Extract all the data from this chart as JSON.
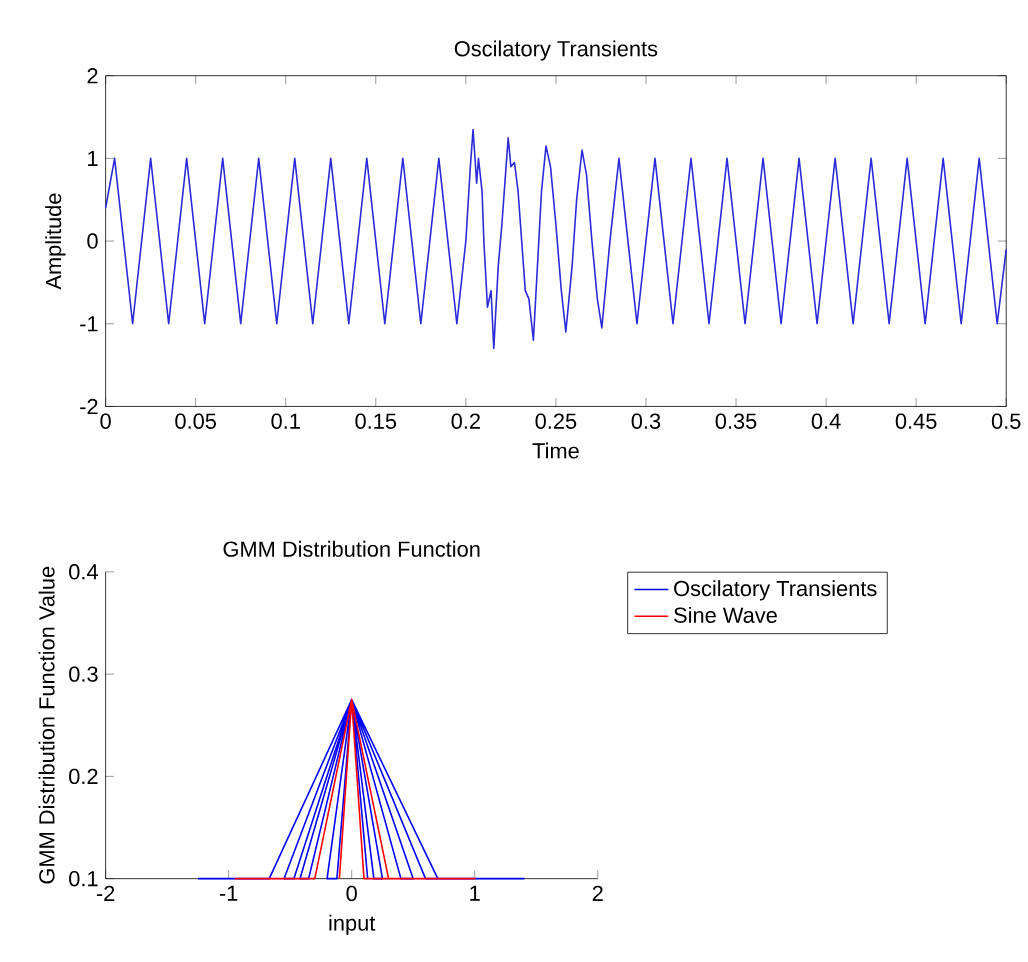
{
  "chart_data": [
    {
      "type": "line",
      "title": "Oscilatory Transients",
      "xlabel": "Time",
      "ylabel": "Amplitude",
      "xlim": [
        0,
        0.5
      ],
      "xticks": [
        0,
        0.05,
        0.1,
        0.15,
        0.2,
        0.25,
        0.3,
        0.35,
        0.4,
        0.45,
        0.5
      ],
      "ylim": [
        -2,
        2
      ],
      "yticks": [
        -2,
        -1,
        0,
        1,
        2
      ],
      "series": [
        {
          "color": "#2a2ad8",
          "x": [
            0,
            0.005,
            0.01,
            0.015,
            0.02,
            0.025,
            0.03,
            0.035,
            0.04,
            0.045,
            0.05,
            0.055,
            0.06,
            0.065,
            0.07,
            0.075,
            0.08,
            0.085,
            0.09,
            0.095,
            0.1,
            0.105,
            0.11,
            0.115,
            0.12,
            0.125,
            0.13,
            0.135,
            0.14,
            0.145,
            0.15,
            0.155,
            0.16,
            0.165,
            0.17,
            0.175,
            0.18,
            0.185,
            0.19,
            0.195,
            0.2,
            0.2025,
            0.204,
            0.206,
            0.207,
            0.209,
            0.21,
            0.212,
            0.214,
            0.2155,
            0.218,
            0.22,
            0.222,
            0.2235,
            0.225,
            0.227,
            0.229,
            0.231,
            0.233,
            0.235,
            0.2375,
            0.24,
            0.242,
            0.2445,
            0.247,
            0.25,
            0.253,
            0.2555,
            0.259,
            0.2615,
            0.2645,
            0.267,
            0.27,
            0.273,
            0.2755,
            0.28,
            0.285,
            0.29,
            0.295,
            0.3,
            0.305,
            0.31,
            0.315,
            0.32,
            0.325,
            0.33,
            0.335,
            0.34,
            0.345,
            0.35,
            0.355,
            0.36,
            0.365,
            0.37,
            0.375,
            0.38,
            0.385,
            0.39,
            0.395,
            0.4,
            0.405,
            0.41,
            0.415,
            0.42,
            0.425,
            0.43,
            0.435,
            0.44,
            0.445,
            0.45,
            0.455,
            0.46,
            0.465,
            0.47,
            0.475,
            0.48,
            0.485,
            0.49,
            0.495,
            0.5
          ],
          "values": [
            0.4,
            1,
            0,
            -1,
            0,
            1,
            0,
            -1,
            0,
            1,
            0,
            -1,
            0,
            1,
            0,
            -1,
            0,
            1,
            0,
            -1,
            0,
            1,
            0,
            -1,
            0,
            1,
            0,
            -1,
            0,
            1,
            0,
            -1,
            0,
            1,
            0,
            -1,
            0,
            1,
            0,
            -1,
            0,
            0.9,
            1.35,
            0.7,
            1.0,
            0.6,
            0,
            -0.8,
            -0.6,
            -1.3,
            -0.3,
            0.2,
            0.8,
            1.25,
            0.9,
            0.95,
            0.6,
            0,
            -0.6,
            -0.7,
            -1.2,
            -0.2,
            0.6,
            1.15,
            0.9,
            0.2,
            -0.6,
            -1.1,
            -0.3,
            0.5,
            1.1,
            0.8,
            0,
            -0.7,
            -1.05,
            0,
            1,
            0,
            -1,
            0,
            1,
            0,
            -1,
            0,
            1,
            0,
            -1,
            0,
            1,
            0,
            -1,
            0,
            1,
            0,
            -1,
            0,
            1,
            0,
            -1,
            0,
            1,
            0,
            -1,
            0,
            1,
            0,
            -1,
            0,
            1,
            0,
            -1,
            0,
            1,
            0,
            -1,
            0,
            1,
            0,
            -1,
            -0.1
          ]
        }
      ]
    },
    {
      "type": "line",
      "title": "GMM Distribution Function",
      "xlabel": "input",
      "ylabel": "GMM Distribution Function Value",
      "xlim": [
        -2,
        2
      ],
      "xticks": [
        -2,
        -1,
        0,
        1,
        2
      ],
      "ylim": [
        0.1,
        0.4
      ],
      "yticks": [
        0.1,
        0.2,
        0.3,
        0.4
      ],
      "legend": "right",
      "series": [
        {
          "name": "Oscilatory Transients",
          "color": "#0000ff",
          "x": [
            -1.25,
            -0.67,
            0,
            0.7,
            1.4,
            0.6,
            0,
            -0.55,
            -0.47,
            0,
            0.5,
            0.4,
            0,
            -0.42,
            -0.35,
            0,
            0.25,
            0.18,
            0,
            -0.2,
            -0.12,
            0,
            0.13
          ],
          "values": [
            0.1,
            0.1,
            0.275,
            0.1,
            0.1,
            0.1,
            0.275,
            0.1,
            0.1,
            0.275,
            0.1,
            0.1,
            0.275,
            0.1,
            0.1,
            0.275,
            0.1,
            0.1,
            0.275,
            0.1,
            0.1,
            0.275,
            0.1
          ]
        },
        {
          "name": "Sine Wave",
          "color": "#ff0000",
          "x": [
            -0.95,
            -0.3,
            0,
            0.3,
            1.0,
            0.1,
            0,
            -0.1
          ],
          "values": [
            0.1,
            0.1,
            0.275,
            0.1,
            0.1,
            0.1,
            0.275,
            0.1
          ]
        }
      ]
    }
  ]
}
